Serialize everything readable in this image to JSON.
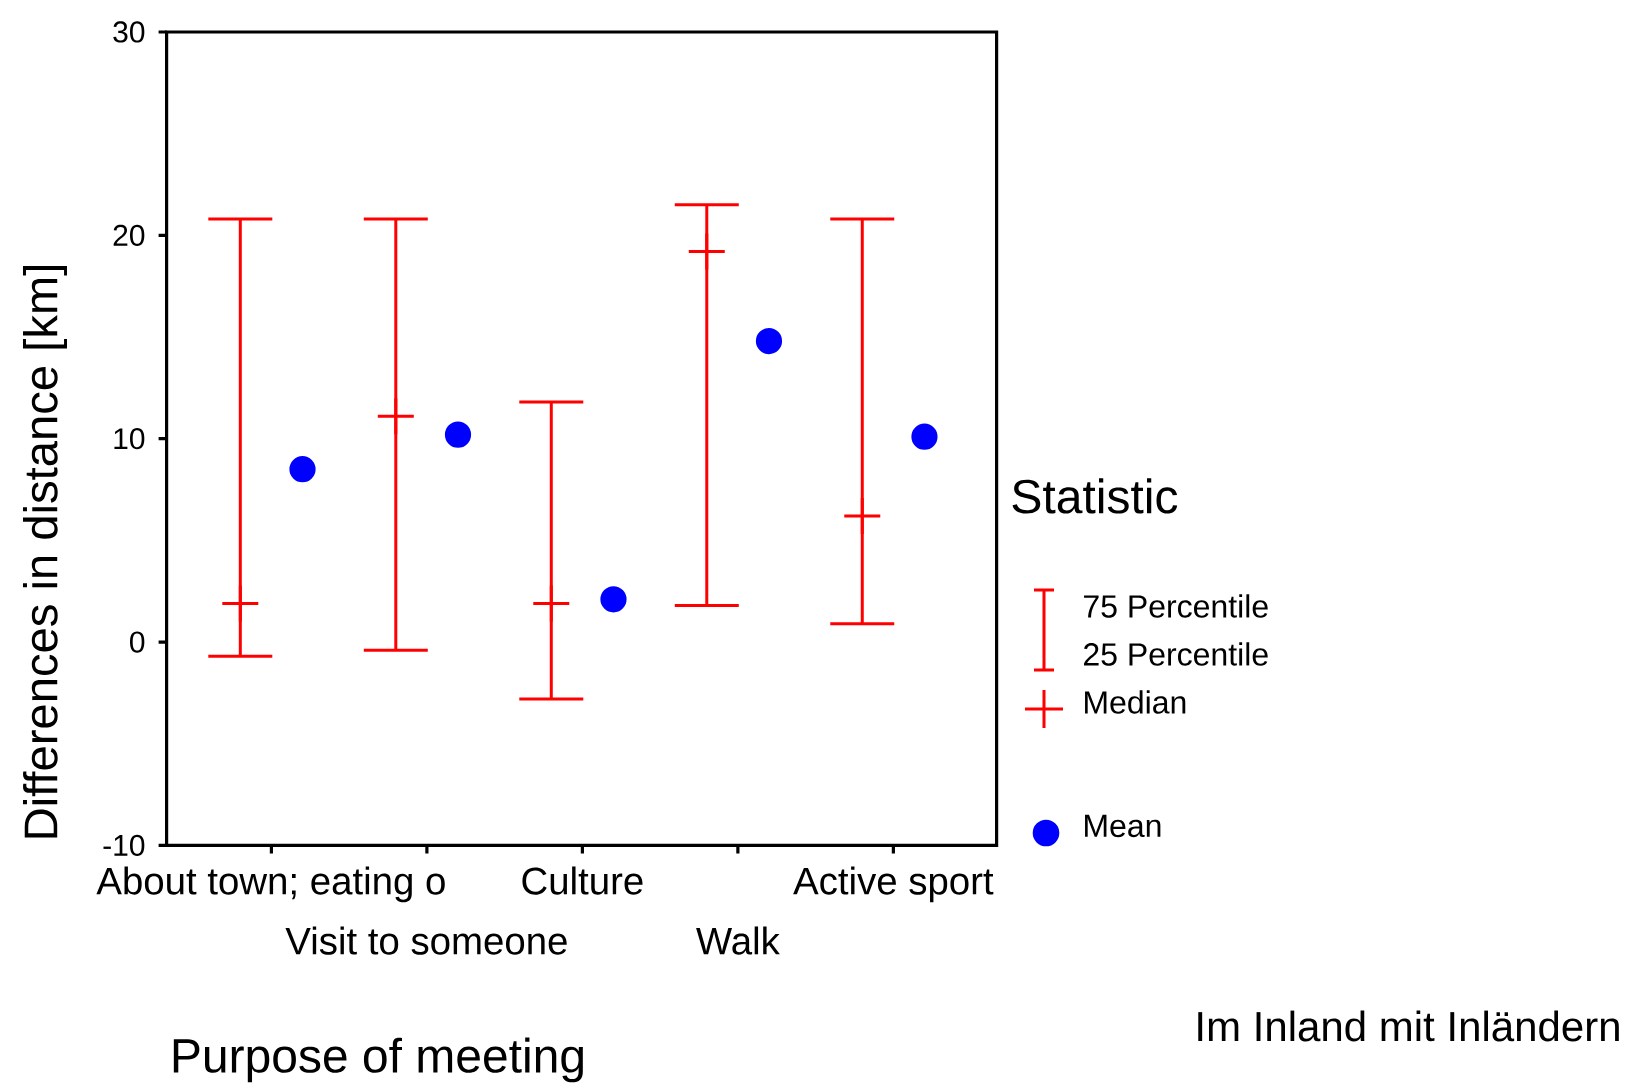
{
  "chart_data": {
    "type": "scatter",
    "ylabel": "Differences in distance [km]",
    "xlabel": "Purpose of meeting",
    "legend_title": "Statistic",
    "legend": "right",
    "annotations": [
      "75 Percentile",
      "25 Percentile",
      "Im Inland mit Inländern"
    ],
    "categories": [
      "About town; eating o",
      "Visit to someone",
      "Culture",
      "Walk",
      "Active sport"
    ],
    "ylim": [
      -10,
      30
    ],
    "yticks": [
      -10,
      0,
      10,
      20,
      30
    ],
    "series": [
      {
        "name": "Median",
        "color": "#ff0000",
        "marker": "cross",
        "values": [
          1.9,
          11.1,
          1.9,
          19.2,
          6.2
        ],
        "errors": [
          [
            -0.7,
            20.8
          ],
          [
            -0.4,
            20.8
          ],
          [
            -2.8,
            11.8
          ],
          [
            1.8,
            21.5
          ],
          [
            0.9,
            20.8
          ]
        ]
      },
      {
        "name": "Mean",
        "color": "#0000ff",
        "marker": "circle",
        "values": [
          8.5,
          10.2,
          2.1,
          14.8,
          10.1
        ]
      }
    ]
  }
}
